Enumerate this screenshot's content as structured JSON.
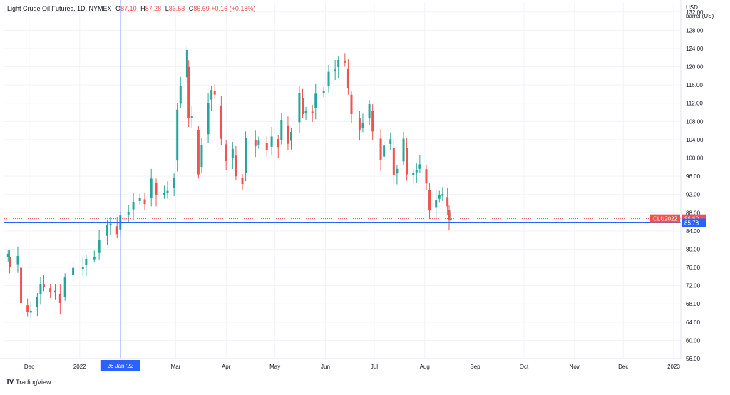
{
  "legend": {
    "symbol": "Light Crude Oil Futures, 1D, NYMEX",
    "open_label": "O",
    "open": "87.10",
    "high_label": "H",
    "high": "87.28",
    "low_label": "L",
    "low": "86.58",
    "close_label": "C",
    "close": "86.69",
    "change": "+0.16 (+0.18%)"
  },
  "price_axis": {
    "unit_line1": "USD",
    "unit_line2": "barrel (US)"
  },
  "crosshair": {
    "date_label": "26 Jan '22",
    "price_label": "85.78"
  },
  "last_price": {
    "symbol_label": "CLU2022",
    "price_label": "86.69"
  },
  "footer": {
    "brand": "TradingView"
  },
  "colors": {
    "up": "#26a69a",
    "down": "#ef5350",
    "crosshair": "#2962ff",
    "grid": "#f0f3fa"
  },
  "chart_data": {
    "type": "candlestick",
    "title": "Light Crude Oil Futures, 1D, NYMEX",
    "y_unit": "USD / barrel (US)",
    "ylim": [
      56,
      134
    ],
    "y_ticks": [
      "56.00",
      "60.00",
      "64.00",
      "68.00",
      "72.00",
      "76.00",
      "80.00",
      "84.00",
      "88.00",
      "92.00",
      "96.00",
      "100.00",
      "104.00",
      "108.00",
      "112.00",
      "116.00",
      "120.00",
      "124.00",
      "128.00",
      "132.00"
    ],
    "x_ticks": [
      "Dec",
      "2022",
      "Mar",
      "Apr",
      "May",
      "Jun",
      "Jul",
      "Aug",
      "Sep",
      "Oct",
      "Nov",
      "Dec",
      "2023"
    ],
    "grid": true,
    "series_close": [
      [
        "2021-11-18",
        79.0
      ],
      [
        "2021-11-19",
        76.1
      ],
      [
        "2021-11-24",
        78.5
      ],
      [
        "2021-11-26",
        68.2
      ],
      [
        "2021-11-30",
        66.2
      ],
      [
        "2021-12-02",
        66.5
      ],
      [
        "2021-12-06",
        69.5
      ],
      [
        "2021-12-08",
        72.4
      ],
      [
        "2021-12-10",
        71.7
      ],
      [
        "2021-12-14",
        70.7
      ],
      [
        "2021-12-17",
        70.9
      ],
      [
        "2021-12-20",
        68.2
      ],
      [
        "2021-12-23",
        73.8
      ],
      [
        "2021-12-28",
        75.9
      ],
      [
        "2022-01-03",
        76.1
      ],
      [
        "2022-01-05",
        77.9
      ],
      [
        "2022-01-10",
        78.2
      ],
      [
        "2022-01-13",
        82.1
      ],
      [
        "2022-01-18",
        85.4
      ],
      [
        "2022-01-20",
        85.6
      ],
      [
        "2022-01-24",
        83.3
      ],
      [
        "2022-01-26",
        87.4
      ],
      [
        "2022-01-31",
        88.2
      ],
      [
        "2022-02-03",
        90.3
      ],
      [
        "2022-02-07",
        91.3
      ],
      [
        "2022-02-10",
        89.9
      ],
      [
        "2022-02-14",
        95.5
      ],
      [
        "2022-02-17",
        91.8
      ],
      [
        "2022-02-22",
        92.4
      ],
      [
        "2022-02-24",
        92.8
      ],
      [
        "2022-02-28",
        95.7
      ],
      [
        "2022-03-02",
        110.6
      ],
      [
        "2022-03-04",
        115.7
      ],
      [
        "2022-03-08",
        123.7
      ],
      [
        "2022-03-09",
        108.7
      ],
      [
        "2022-03-11",
        109.3
      ],
      [
        "2022-03-15",
        96.4
      ],
      [
        "2022-03-17",
        102.9
      ],
      [
        "2022-03-21",
        112.1
      ],
      [
        "2022-03-23",
        114.9
      ],
      [
        "2022-03-25",
        113.9
      ],
      [
        "2022-03-29",
        104.2
      ],
      [
        "2022-04-01",
        99.3
      ],
      [
        "2022-04-05",
        102.0
      ],
      [
        "2022-04-07",
        96.0
      ],
      [
        "2022-04-11",
        94.3
      ],
      [
        "2022-04-13",
        104.3
      ],
      [
        "2022-04-19",
        102.6
      ],
      [
        "2022-04-21",
        103.8
      ],
      [
        "2022-04-26",
        101.7
      ],
      [
        "2022-04-29",
        104.7
      ],
      [
        "2022-05-03",
        102.4
      ],
      [
        "2022-05-05",
        108.3
      ],
      [
        "2022-05-09",
        103.1
      ],
      [
        "2022-05-11",
        105.7
      ],
      [
        "2022-05-16",
        114.2
      ],
      [
        "2022-05-18",
        109.6
      ],
      [
        "2022-05-20",
        110.3
      ],
      [
        "2022-05-24",
        109.8
      ],
      [
        "2022-05-26",
        114.1
      ],
      [
        "2022-05-31",
        114.7
      ],
      [
        "2022-06-03",
        118.9
      ],
      [
        "2022-06-07",
        119.4
      ],
      [
        "2022-06-09",
        121.5
      ],
      [
        "2022-06-13",
        120.9
      ],
      [
        "2022-06-15",
        115.3
      ],
      [
        "2022-06-17",
        109.6
      ],
      [
        "2022-06-22",
        106.2
      ],
      [
        "2022-06-24",
        107.6
      ],
      [
        "2022-06-28",
        111.8
      ],
      [
        "2022-06-30",
        105.8
      ],
      [
        "2022-07-05",
        99.5
      ],
      [
        "2022-07-07",
        102.7
      ],
      [
        "2022-07-11",
        104.1
      ],
      [
        "2022-07-13",
        96.3
      ],
      [
        "2022-07-15",
        97.6
      ],
      [
        "2022-07-19",
        104.2
      ],
      [
        "2022-07-21",
        96.4
      ],
      [
        "2022-07-25",
        96.7
      ],
      [
        "2022-07-27",
        97.3
      ],
      [
        "2022-07-29",
        98.6
      ],
      [
        "2022-08-02",
        94.4
      ],
      [
        "2022-08-04",
        88.5
      ],
      [
        "2022-08-08",
        90.8
      ],
      [
        "2022-08-10",
        91.9
      ],
      [
        "2022-08-12",
        92.1
      ],
      [
        "2022-08-15",
        89.4
      ],
      [
        "2022-08-16",
        86.5
      ],
      [
        "2022-08-17",
        86.7
      ]
    ]
  }
}
